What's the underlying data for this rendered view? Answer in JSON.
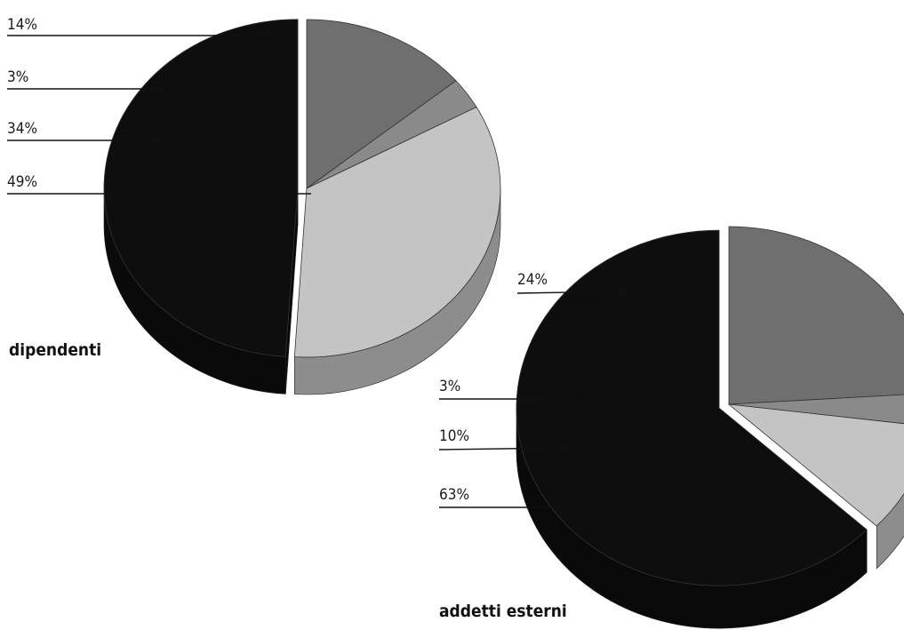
{
  "chart_data": [
    {
      "type": "pie",
      "title": "dipendenti",
      "slices": [
        {
          "label": "14%",
          "value": 14,
          "color": "#6f6f6f"
        },
        {
          "label": "3%",
          "value": 3,
          "color": "#8a8a8a"
        },
        {
          "label": "34%",
          "value": 34,
          "color": "#c4c4c4"
        },
        {
          "label": "49%",
          "value": 49,
          "color": "#0e0e0e"
        }
      ]
    },
    {
      "type": "pie",
      "title": "addetti esterni",
      "slices": [
        {
          "label": "24%",
          "value": 24,
          "color": "#6f6f6f"
        },
        {
          "label": "3%",
          "value": 3,
          "color": "#8a8a8a"
        },
        {
          "label": "10%",
          "value": 10,
          "color": "#c4c4c4"
        },
        {
          "label": "63%",
          "value": 63,
          "color": "#0e0e0e"
        }
      ]
    }
  ]
}
